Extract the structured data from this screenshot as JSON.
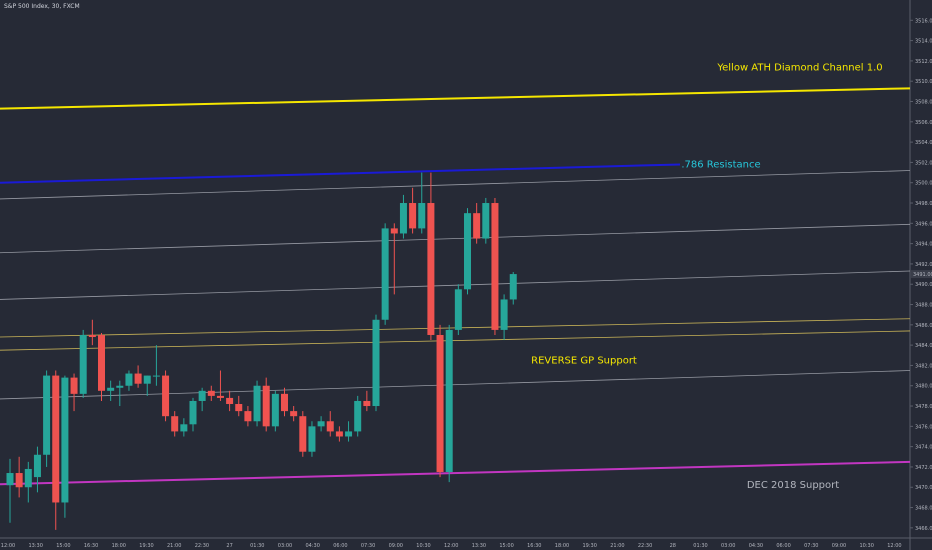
{
  "chart_data": {
    "type": "candlestick",
    "title": "S&P 500 Index, 30, FXCM",
    "colors": {
      "background": "#262a36",
      "up": "#26a69a",
      "down": "#ef5350",
      "yellow_channel": "#f5e700",
      "resistance": "#1a1ad6",
      "dec_support": "#c236c2",
      "thin_lines": "#b2b5be",
      "gp_lines": "#c9b458",
      "price_tag": "#3a3e4a"
    },
    "ylim": [
      3465,
      3518
    ],
    "y_ticks": [
      3466,
      3468,
      3470,
      3472,
      3474,
      3476,
      3478,
      3480,
      3482,
      3484,
      3486,
      3488,
      3490,
      3492,
      3494,
      3496,
      3498,
      3500,
      3502,
      3504,
      3506,
      3508,
      3510,
      3512,
      3514,
      3516
    ],
    "y_tick_labels": [
      "3466.00",
      "3468.00",
      "3470.00",
      "3472.00",
      "3474.00",
      "3476.00",
      "3478.00",
      "3480.00",
      "3482.00",
      "3484.00",
      "3486.00",
      "3488.00",
      "3490.00",
      "3492.00",
      "3494.00",
      "3496.00",
      "3498.00",
      "3500.00",
      "3502.00",
      "3504.00",
      "3506.00",
      "3508.00",
      "3510.00",
      "3512.00",
      "3514.00",
      "3516.00"
    ],
    "x_labels": [
      "12:00",
      "13:30",
      "15:00",
      "16:30",
      "18:00",
      "19:30",
      "21:00",
      "22:30",
      "27",
      "01:30",
      "03:00",
      "04:30",
      "06:00",
      "07:30",
      "09:00",
      "10:30",
      "12:00",
      "13:30",
      "15:00",
      "16:30",
      "18:00",
      "19:30",
      "21:00",
      "22:30",
      "28",
      "01:30",
      "03:00",
      "04:30",
      "06:00",
      "07:30",
      "09:00",
      "10:30",
      "12:00"
    ],
    "candles": [
      {
        "o": 3470.2,
        "h": 3472.8,
        "l": 3466.5,
        "c": 3471.4
      },
      {
        "o": 3471.4,
        "h": 3473.0,
        "l": 3469.0,
        "c": 3470.0
      },
      {
        "o": 3470.0,
        "h": 3472.5,
        "l": 3468.5,
        "c": 3471.8
      },
      {
        "o": 3471.0,
        "h": 3474.0,
        "l": 3469.5,
        "c": 3473.2
      },
      {
        "o": 3473.2,
        "h": 3481.5,
        "l": 3472.0,
        "c": 3481.0
      },
      {
        "o": 3481.0,
        "h": 3481.5,
        "l": 3465.8,
        "c": 3468.5
      },
      {
        "o": 3468.5,
        "h": 3481.0,
        "l": 3467.0,
        "c": 3480.8
      },
      {
        "o": 3480.8,
        "h": 3481.2,
        "l": 3477.5,
        "c": 3479.2
      },
      {
        "o": 3479.2,
        "h": 3485.5,
        "l": 3478.8,
        "c": 3485.0
      },
      {
        "o": 3485.0,
        "h": 3486.5,
        "l": 3484.0,
        "c": 3484.8
      },
      {
        "o": 3485.0,
        "h": 3485.2,
        "l": 3478.5,
        "c": 3479.5
      },
      {
        "o": 3479.5,
        "h": 3480.5,
        "l": 3478.5,
        "c": 3479.8
      },
      {
        "o": 3479.8,
        "h": 3480.5,
        "l": 3478.0,
        "c": 3480.0
      },
      {
        "o": 3480.0,
        "h": 3481.5,
        "l": 3479.5,
        "c": 3481.2
      },
      {
        "o": 3481.2,
        "h": 3482.0,
        "l": 3479.8,
        "c": 3480.2
      },
      {
        "o": 3480.2,
        "h": 3481.0,
        "l": 3479.0,
        "c": 3481.0
      },
      {
        "o": 3481.0,
        "h": 3484.0,
        "l": 3480.0,
        "c": 3481.0
      },
      {
        "o": 3481.0,
        "h": 3481.5,
        "l": 3476.5,
        "c": 3477.0
      },
      {
        "o": 3477.0,
        "h": 3477.5,
        "l": 3475.0,
        "c": 3475.5
      },
      {
        "o": 3475.5,
        "h": 3476.8,
        "l": 3475.0,
        "c": 3476.2
      },
      {
        "o": 3476.2,
        "h": 3478.8,
        "l": 3475.5,
        "c": 3478.5
      },
      {
        "o": 3478.5,
        "h": 3479.8,
        "l": 3477.5,
        "c": 3479.5
      },
      {
        "o": 3479.5,
        "h": 3480.0,
        "l": 3478.5,
        "c": 3479.0
      },
      {
        "o": 3479.0,
        "h": 3481.5,
        "l": 3478.5,
        "c": 3478.8
      },
      {
        "o": 3478.8,
        "h": 3479.5,
        "l": 3477.5,
        "c": 3478.2
      },
      {
        "o": 3478.2,
        "h": 3479.0,
        "l": 3477.0,
        "c": 3477.5
      },
      {
        "o": 3477.5,
        "h": 3478.0,
        "l": 3476.0,
        "c": 3476.5
      },
      {
        "o": 3476.5,
        "h": 3480.5,
        "l": 3476.0,
        "c": 3480.0
      },
      {
        "o": 3480.0,
        "h": 3480.8,
        "l": 3475.5,
        "c": 3476.0
      },
      {
        "o": 3476.0,
        "h": 3479.5,
        "l": 3475.5,
        "c": 3479.2
      },
      {
        "o": 3479.2,
        "h": 3479.8,
        "l": 3477.0,
        "c": 3477.5
      },
      {
        "o": 3477.5,
        "h": 3478.0,
        "l": 3476.5,
        "c": 3477.0
      },
      {
        "o": 3477.0,
        "h": 3477.5,
        "l": 3473.0,
        "c": 3473.5
      },
      {
        "o": 3473.5,
        "h": 3476.5,
        "l": 3473.0,
        "c": 3476.0
      },
      {
        "o": 3476.0,
        "h": 3477.0,
        "l": 3475.5,
        "c": 3476.5
      },
      {
        "o": 3476.5,
        "h": 3477.5,
        "l": 3475.0,
        "c": 3475.5
      },
      {
        "o": 3475.5,
        "h": 3476.0,
        "l": 3474.5,
        "c": 3475.0
      },
      {
        "o": 3475.0,
        "h": 3476.5,
        "l": 3474.5,
        "c": 3475.5
      },
      {
        "o": 3475.5,
        "h": 3479.0,
        "l": 3475.0,
        "c": 3478.5
      },
      {
        "o": 3478.5,
        "h": 3479.5,
        "l": 3477.5,
        "c": 3478.0
      },
      {
        "o": 3478.0,
        "h": 3487.0,
        "l": 3477.5,
        "c": 3486.5
      },
      {
        "o": 3486.5,
        "h": 3496.0,
        "l": 3486.0,
        "c": 3495.5
      },
      {
        "o": 3495.5,
        "h": 3496.0,
        "l": 3489.0,
        "c": 3495.0
      },
      {
        "o": 3495.0,
        "h": 3498.8,
        "l": 3494.5,
        "c": 3498.0
      },
      {
        "o": 3498.0,
        "h": 3499.5,
        "l": 3495.0,
        "c": 3495.5
      },
      {
        "o": 3495.5,
        "h": 3501.0,
        "l": 3495.0,
        "c": 3498.0
      },
      {
        "o": 3498.0,
        "h": 3501.0,
        "l": 3484.5,
        "c": 3485.0
      },
      {
        "o": 3485.0,
        "h": 3486.0,
        "l": 3471.0,
        "c": 3471.5
      },
      {
        "o": 3471.5,
        "h": 3486.0,
        "l": 3470.5,
        "c": 3485.5
      },
      {
        "o": 3485.5,
        "h": 3490.0,
        "l": 3485.0,
        "c": 3489.5
      },
      {
        "o": 3489.5,
        "h": 3497.5,
        "l": 3489.0,
        "c": 3497.0
      },
      {
        "o": 3497.0,
        "h": 3498.0,
        "l": 3494.0,
        "c": 3494.5
      },
      {
        "o": 3494.5,
        "h": 3498.5,
        "l": 3494.0,
        "c": 3498.0
      },
      {
        "o": 3498.0,
        "h": 3498.5,
        "l": 3485.0,
        "c": 3485.5
      },
      {
        "o": 3485.5,
        "h": 3489.0,
        "l": 3484.5,
        "c": 3488.5
      },
      {
        "o": 3488.5,
        "h": 3491.2,
        "l": 3488.0,
        "c": 3491.0
      }
    ],
    "price_marker": "3491.00",
    "annotations": {
      "yellow_channel": "Yellow ATH Diamond Channel 1.0",
      "resistance": ".786 Resistance",
      "gp_support": "REVERSE GP Support",
      "dec_support": "DEC 2018 Support"
    }
  }
}
